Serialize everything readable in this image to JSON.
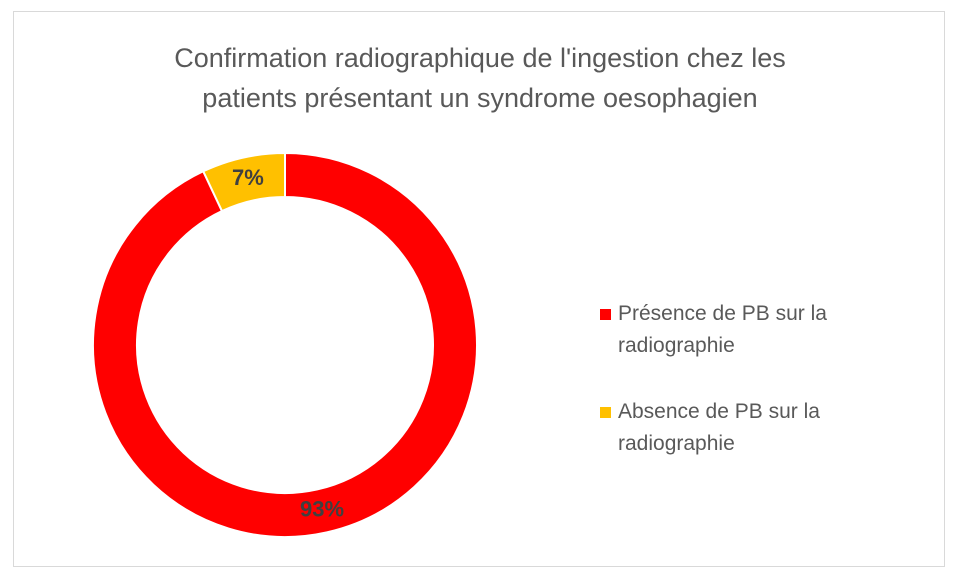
{
  "chart_data": {
    "type": "donut",
    "title": "Confirmation radiographique de l'ingestion chez les patients présentant un syndrome oesophagien",
    "categories": [
      "Présence de PB sur la radiographie",
      "Absence de PB sur la radiographie"
    ],
    "values": [
      93,
      7
    ],
    "value_labels": [
      "93%",
      "7%"
    ],
    "colors": [
      "#ff0000",
      "#ffc000"
    ],
    "legend": "right"
  }
}
